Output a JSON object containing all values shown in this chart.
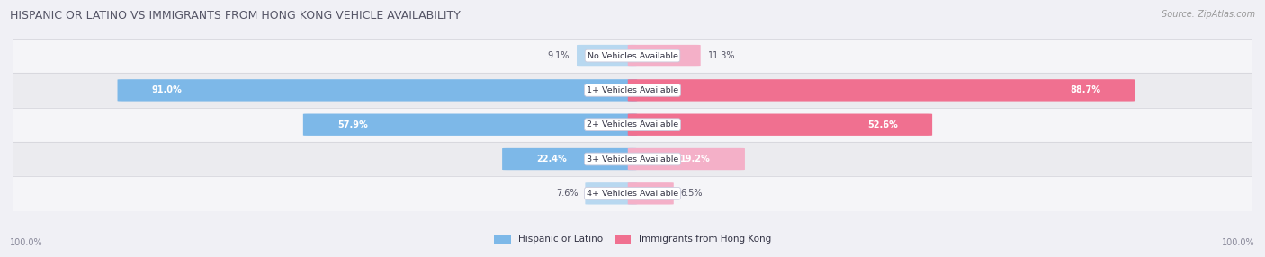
{
  "title": "HISPANIC OR LATINO VS IMMIGRANTS FROM HONG KONG VEHICLE AVAILABILITY",
  "source": "Source: ZipAtlas.com",
  "categories": [
    "No Vehicles Available",
    "1+ Vehicles Available",
    "2+ Vehicles Available",
    "3+ Vehicles Available",
    "4+ Vehicles Available"
  ],
  "hispanic_values": [
    9.1,
    91.0,
    57.9,
    22.4,
    7.6
  ],
  "hk_values": [
    11.3,
    88.7,
    52.6,
    19.2,
    6.5
  ],
  "hispanic_color": "#7db8e8",
  "hk_color": "#f07090",
  "hispanic_color_light": "#b8d8f0",
  "hk_color_light": "#f4b0c8",
  "bar_height": 0.62,
  "max_value": 100.0,
  "footer_labels": [
    "100.0%",
    "100.0%"
  ],
  "legend_labels": [
    "Hispanic or Latino",
    "Immigrants from Hong Kong"
  ],
  "row_colors": [
    "#f5f5f8",
    "#ebebef"
  ],
  "title_color": "#555566",
  "source_color": "#999999",
  "label_threshold": 15.0
}
